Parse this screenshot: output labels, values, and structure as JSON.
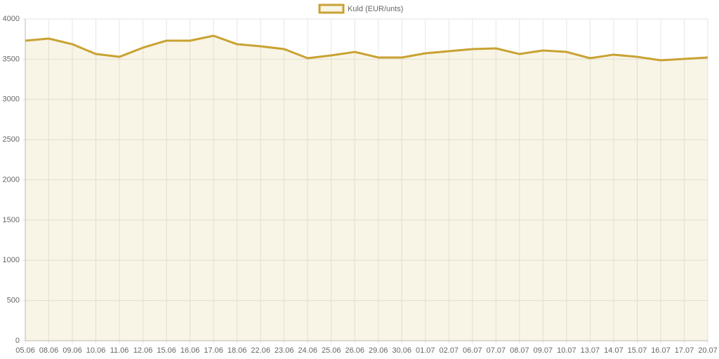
{
  "chart_data": {
    "type": "line",
    "categories": [
      "05.06",
      "08.06",
      "09.06",
      "10.06",
      "11.06",
      "12.06",
      "15.06",
      "16.06",
      "17.06",
      "18.06",
      "22.06",
      "23.06",
      "24.06",
      "25.06",
      "26.06",
      "29.06",
      "30.06",
      "01.07",
      "02.07",
      "06.07",
      "07.07",
      "08.07",
      "09.07",
      "10.07",
      "13.07",
      "14.07",
      "15.07",
      "16.07",
      "17.07",
      "20.07"
    ],
    "series": [
      {
        "name": "Kuld (EUR/unts)",
        "color": "#c9a232",
        "values": [
          3730,
          3756,
          3686,
          3564,
          3529,
          3643,
          3730,
          3730,
          3791,
          3686,
          3660,
          3625,
          3512,
          3547,
          3590,
          3521,
          3521,
          3573,
          3599,
          3625,
          3634,
          3564,
          3608,
          3590,
          3512,
          3556,
          3529,
          3486,
          3503,
          3521
        ]
      }
    ],
    "fill": true,
    "ylim": [
      0,
      4000
    ],
    "yticks": [
      0,
      500,
      1000,
      1500,
      2000,
      2500,
      3000,
      3500,
      4000
    ],
    "grid": true,
    "legend": "top"
  }
}
